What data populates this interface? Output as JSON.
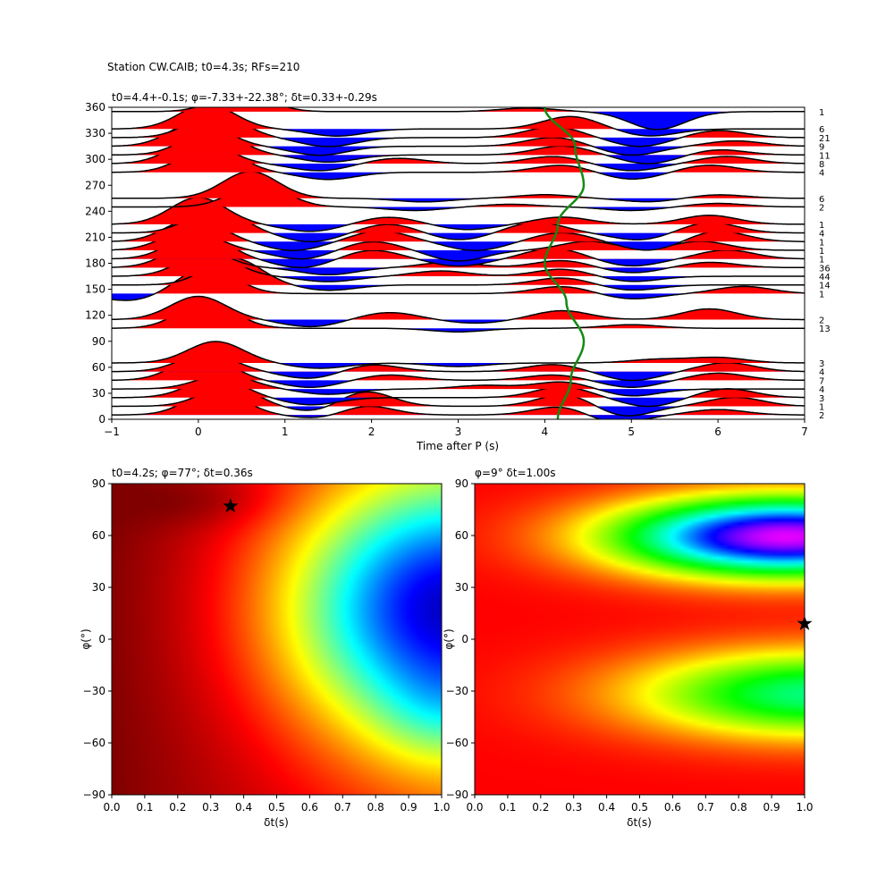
{
  "figure_title": "Station CW.CAIB; t0=4.3s; RFs=210",
  "chart_data": [
    {
      "type": "line",
      "title": "t0=4.4+-0.1s; φ=-7.33+-22.38°; δt=0.33+-0.29s",
      "xlabel": "Time after P (s)",
      "ylabel": "",
      "xlim": [
        -1,
        7
      ],
      "ylim": [
        0,
        360
      ],
      "xticks": [
        "−1",
        "0",
        "1",
        "2",
        "3",
        "4",
        "5",
        "6",
        "7"
      ],
      "yticks": [
        "0",
        "30",
        "60",
        "90",
        "120",
        "150",
        "180",
        "210",
        "240",
        "270",
        "300",
        "330",
        "360"
      ],
      "fill_positive_color": "#ff0000",
      "fill_negative_color": "#0000ff",
      "trace_color": "#000000",
      "curve_color": "#138a13",
      "traces": [
        {
          "baz": 5,
          "count": "2",
          "peaks": [
            [
              0.2,
              28
            ],
            [
              1.9,
              12
            ],
            [
              4.2,
              10
            ],
            [
              6.0,
              6
            ]
          ],
          "troughs": [
            [
              1.5,
              6
            ],
            [
              4.8,
              10
            ]
          ]
        },
        {
          "baz": 15,
          "count": "1",
          "peaks": [
            [
              0.35,
              22
            ],
            [
              1.9,
              18
            ],
            [
              4.25,
              14
            ],
            [
              6.2,
              10
            ]
          ],
          "troughs": [
            [
              1.4,
              8
            ],
            [
              4.9,
              12
            ]
          ]
        },
        {
          "baz": 25,
          "count": "3",
          "peaks": [
            [
              0.2,
              22
            ],
            [
              4.2,
              12
            ],
            [
              6.1,
              10
            ]
          ],
          "troughs": [
            [
              1.3,
              8
            ],
            [
              5.2,
              10
            ]
          ]
        },
        {
          "baz": 35,
          "count": "4",
          "peaks": [
            [
              0.3,
              16
            ],
            [
              3.3,
              4
            ],
            [
              4.2,
              8
            ]
          ],
          "troughs": [
            [
              1.5,
              6
            ],
            [
              5.0,
              8
            ]
          ]
        },
        {
          "baz": 45,
          "count": "7",
          "peaks": [
            [
              0.05,
              28
            ],
            [
              2.2,
              6
            ],
            [
              4.1,
              6
            ],
            [
              6.0,
              8
            ]
          ],
          "troughs": [
            [
              1.3,
              8
            ],
            [
              5.0,
              8
            ]
          ]
        },
        {
          "baz": 55,
          "count": "4",
          "peaks": [
            [
              0.1,
              20
            ],
            [
              2.0,
              8
            ],
            [
              4.1,
              8
            ],
            [
              6.1,
              10
            ]
          ],
          "troughs": [
            [
              1.3,
              8
            ],
            [
              5.0,
              10
            ]
          ]
        },
        {
          "baz": 65,
          "count": "3",
          "peaks": [
            [
              0.2,
              24
            ],
            [
              5.3,
              4
            ],
            [
              6.0,
              6
            ]
          ],
          "troughs": [
            [
              1.4,
              6
            ],
            [
              3.0,
              4
            ]
          ]
        },
        {
          "baz": 105,
          "count": "13",
          "peaks": [
            [
              0.1,
              30
            ],
            [
              5.0,
              4
            ]
          ],
          "troughs": [
            [
              3.0,
              4
            ]
          ]
        },
        {
          "baz": 115,
          "count": "2",
          "peaks": [
            [
              0.0,
              26
            ],
            [
              2.2,
              8
            ],
            [
              4.2,
              10
            ],
            [
              5.9,
              12
            ]
          ],
          "troughs": [
            [
              1.3,
              8
            ],
            [
              3.2,
              4
            ]
          ]
        },
        {
          "baz": 145,
          "count": "1",
          "peaks": [
            [
              0.1,
              30
            ],
            [
              4.2,
              8
            ],
            [
              6.3,
              8
            ]
          ],
          "troughs": [
            [
              -0.8,
              8
            ],
            [
              5.0,
              6
            ]
          ]
        },
        {
          "baz": 155,
          "count": "14",
          "peaks": [
            [
              0.4,
              30
            ],
            [
              4.2,
              8
            ]
          ],
          "troughs": [
            [
              1.5,
              6
            ],
            [
              5.0,
              6
            ]
          ]
        },
        {
          "baz": 165,
          "count": "44",
          "peaks": [
            [
              0.1,
              26
            ],
            [
              2.8,
              6
            ],
            [
              4.2,
              8
            ]
          ],
          "troughs": [
            [
              1.5,
              6
            ],
            [
              5.0,
              6
            ]
          ]
        },
        {
          "baz": 175,
          "count": "36",
          "peaks": [
            [
              -0.05,
              26
            ],
            [
              2.9,
              6
            ],
            [
              4.2,
              8
            ],
            [
              5.9,
              6
            ]
          ],
          "troughs": [
            [
              1.5,
              8
            ],
            [
              5.0,
              6
            ]
          ]
        },
        {
          "baz": 185,
          "count": "1",
          "peaks": [
            [
              0.0,
              30
            ],
            [
              2.0,
              10
            ],
            [
              4.1,
              12
            ],
            [
              6.1,
              10
            ]
          ],
          "troughs": [
            [
              1.2,
              10
            ],
            [
              3.0,
              8
            ],
            [
              5.0,
              8
            ]
          ]
        },
        {
          "baz": 195,
          "count": "1",
          "peaks": [
            [
              -0.1,
              22
            ],
            [
              2.0,
              10
            ],
            [
              4.5,
              10
            ],
            [
              5.8,
              10
            ]
          ],
          "troughs": [
            [
              1.2,
              10
            ],
            [
              3.0,
              12
            ]
          ]
        },
        {
          "baz": 205,
          "count": "1",
          "peaks": [
            [
              -0.05,
              26
            ],
            [
              2.1,
              12
            ],
            [
              4.2,
              10
            ],
            [
              6.0,
              12
            ]
          ],
          "troughs": [
            [
              1.1,
              10
            ],
            [
              3.2,
              10
            ],
            [
              5.2,
              10
            ]
          ]
        },
        {
          "baz": 215,
          "count": "4",
          "peaks": [
            [
              0.2,
              26
            ],
            [
              2.2,
              10
            ],
            [
              3.9,
              12
            ],
            [
              5.9,
              12
            ]
          ],
          "troughs": [
            [
              1.3,
              10
            ],
            [
              3.0,
              8
            ],
            [
              5.1,
              8
            ]
          ]
        },
        {
          "baz": 225,
          "count": "1",
          "peaks": [
            [
              0.0,
              30
            ],
            [
              2.2,
              8
            ],
            [
              4.2,
              8
            ],
            [
              5.9,
              10
            ]
          ],
          "troughs": [
            [
              1.3,
              8
            ],
            [
              3.1,
              6
            ]
          ]
        },
        {
          "baz": 245,
          "count": "2",
          "peaks": [
            [
              0.7,
              26
            ],
            [
              3.6,
              3
            ],
            [
              6.0,
              4
            ]
          ],
          "troughs": [
            [
              2.5,
              4
            ],
            [
              5.0,
              4
            ]
          ]
        },
        {
          "baz": 255,
          "count": "6",
          "peaks": [
            [
              0.6,
              30
            ],
            [
              4.0,
              4
            ],
            [
              6.0,
              4
            ]
          ],
          "troughs": [
            [
              2.6,
              4
            ],
            [
              5.2,
              4
            ]
          ]
        },
        {
          "baz": 285,
          "count": "4",
          "peaks": [
            [
              0.15,
              30
            ],
            [
              4.2,
              8
            ],
            [
              5.9,
              8
            ]
          ],
          "troughs": [
            [
              1.5,
              8
            ],
            [
              5.0,
              8
            ]
          ]
        },
        {
          "baz": 295,
          "count": "8",
          "peaks": [
            [
              0.0,
              28
            ],
            [
              2.3,
              6
            ],
            [
              4.1,
              8
            ],
            [
              6.1,
              8
            ]
          ],
          "troughs": [
            [
              1.4,
              8
            ],
            [
              5.0,
              8
            ]
          ]
        },
        {
          "baz": 305,
          "count": "11",
          "peaks": [
            [
              0.15,
              28
            ],
            [
              4.2,
              10
            ],
            [
              6.0,
              6
            ]
          ],
          "troughs": [
            [
              1.5,
              8
            ],
            [
              5.2,
              10
            ]
          ]
        },
        {
          "baz": 315,
          "count": "9",
          "peaks": [
            [
              0.0,
              28
            ],
            [
              4.1,
              10
            ],
            [
              6.2,
              6
            ]
          ],
          "troughs": [
            [
              1.4,
              10
            ],
            [
              5.0,
              10
            ]
          ]
        },
        {
          "baz": 325,
          "count": "21",
          "peaks": [
            [
              0.2,
              26
            ],
            [
              4.1,
              12
            ],
            [
              6.0,
              8
            ]
          ],
          "troughs": [
            [
              1.5,
              10
            ],
            [
              5.1,
              10
            ]
          ]
        },
        {
          "baz": 335,
          "count": "6",
          "peaks": [
            [
              0.1,
              28
            ],
            [
              4.3,
              14
            ]
          ],
          "troughs": [
            [
              1.6,
              8
            ],
            [
              5.2,
              8
            ]
          ]
        },
        {
          "baz": 355,
          "count": "1",
          "peaks": [
            [
              0.5,
              20
            ],
            [
              3.8,
              4
            ]
          ],
          "troughs": [
            [
              5.3,
              20
            ]
          ]
        }
      ],
      "pick_curve": {
        "baz": [
          0,
          45,
          90,
          135,
          180,
          225,
          270,
          315,
          360
        ],
        "t": [
          4.15,
          4.3,
          4.45,
          4.25,
          4.0,
          4.15,
          4.45,
          4.35,
          4.0
        ]
      }
    },
    {
      "type": "heatmap",
      "title": "t0=4.2s; φ=77°; δt=0.36s",
      "xlabel": "δt(s)",
      "ylabel": "φ(°)",
      "xlim": [
        0.0,
        1.0
      ],
      "ylim": [
        -90,
        90
      ],
      "xticks": [
        "0.0",
        "0.1",
        "0.2",
        "0.3",
        "0.4",
        "0.5",
        "0.6",
        "0.7",
        "0.8",
        "0.9",
        "1.0"
      ],
      "yticks": [
        "−90",
        "−60",
        "−30",
        "0",
        "30",
        "60",
        "90"
      ],
      "colormap": "jet (dark red high, blue low)",
      "best": {
        "dt": 0.36,
        "phi": 77
      },
      "low_centers": [
        {
          "dt": 1.0,
          "phi": 18,
          "strength": 1.0
        }
      ]
    },
    {
      "type": "heatmap",
      "title": "φ=9° δt=1.00s",
      "xlabel": "δt(s)",
      "ylabel": "φ(°)",
      "xlim": [
        0.0,
        1.0
      ],
      "ylim": [
        -90,
        90
      ],
      "xticks": [
        "0.0",
        "0.1",
        "0.2",
        "0.3",
        "0.4",
        "0.5",
        "0.6",
        "0.7",
        "0.8",
        "0.9",
        "1.0"
      ],
      "yticks": [
        "−90",
        "−60",
        "−30",
        "0",
        "30",
        "60",
        "90"
      ],
      "colormap": "hsv (red low, magenta high)",
      "best": {
        "dt": 1.0,
        "phi": 9
      },
      "high_centers": [
        {
          "dt": 0.95,
          "phi": 60,
          "strength": 1.0
        },
        {
          "dt": 1.0,
          "phi": -32,
          "strength": 0.5
        }
      ]
    }
  ]
}
